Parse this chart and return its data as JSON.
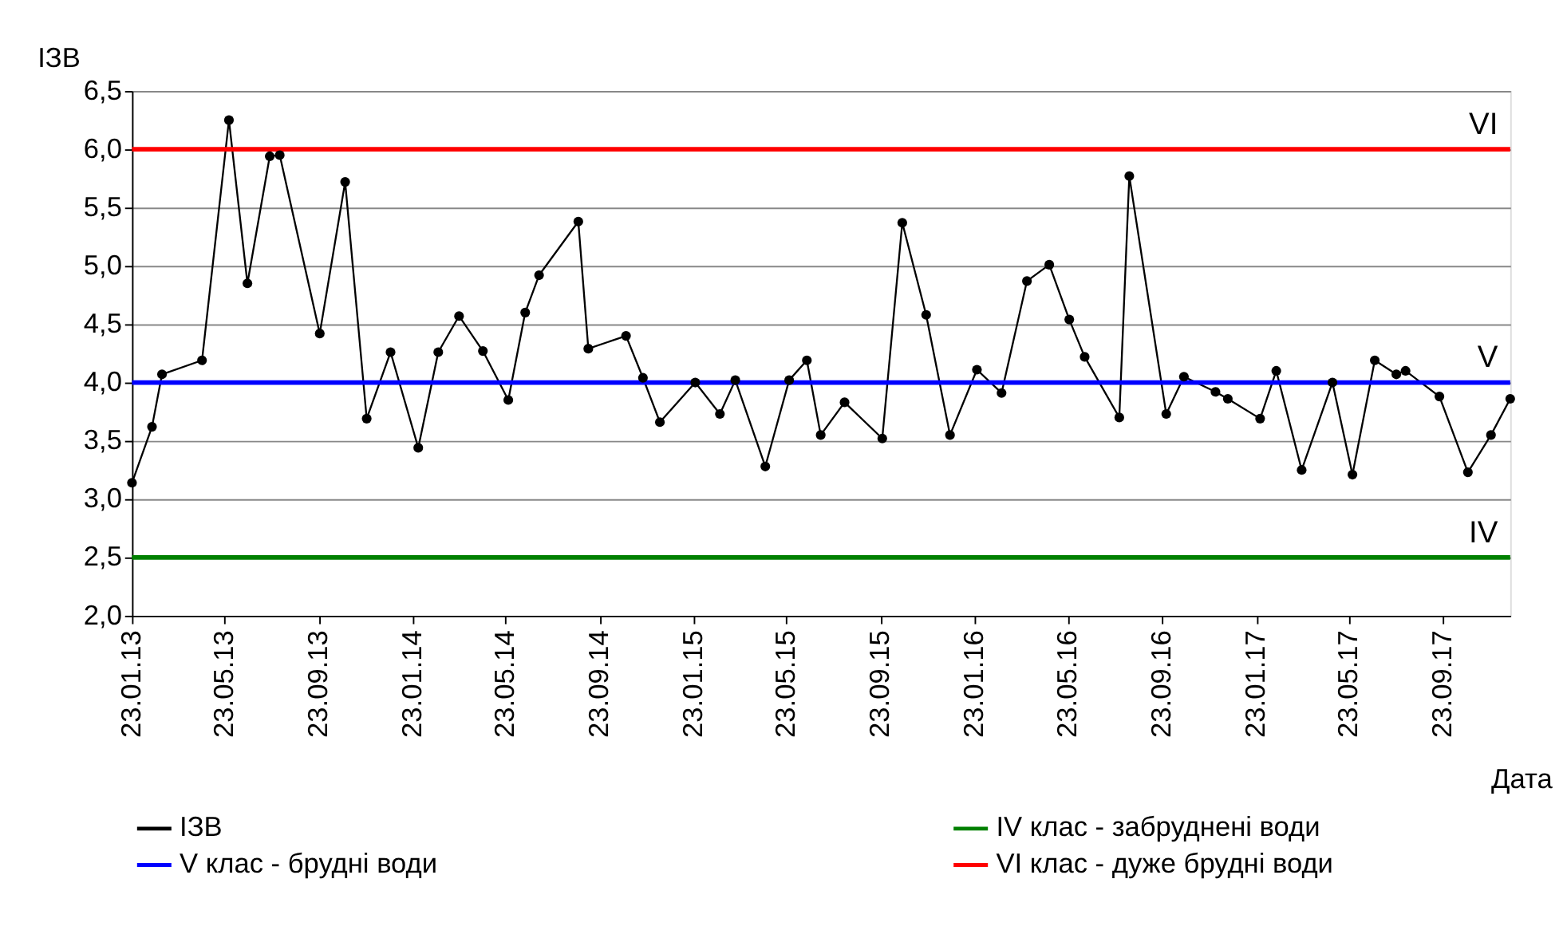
{
  "chart_data": {
    "type": "line",
    "xlabel": "Дата",
    "ylabel": "ІЗВ",
    "xlim": [
      "2013-01-23",
      "2017-12-19"
    ],
    "xticks": [
      {
        "value": "2013-01-23",
        "label": "23.01.13"
      },
      {
        "value": "2013-05-23",
        "label": "23.05.13"
      },
      {
        "value": "2013-09-23",
        "label": "23.09.13"
      },
      {
        "value": "2014-01-23",
        "label": "23.01.14"
      },
      {
        "value": "2014-05-23",
        "label": "23.05.14"
      },
      {
        "value": "2014-09-23",
        "label": "23.09.14"
      },
      {
        "value": "2015-01-23",
        "label": "23.01.15"
      },
      {
        "value": "2015-05-23",
        "label": "23.05.15"
      },
      {
        "value": "2015-09-23",
        "label": "23.09.15"
      },
      {
        "value": "2016-01-23",
        "label": "23.01.16"
      },
      {
        "value": "2016-05-23",
        "label": "23.05.16"
      },
      {
        "value": "2016-09-23",
        "label": "23.09.16"
      },
      {
        "value": "2017-01-23",
        "label": "23.01.17"
      },
      {
        "value": "2017-05-23",
        "label": "23.05.17"
      },
      {
        "value": "2017-09-23",
        "label": "23.09.17"
      }
    ],
    "ylim": [
      2.0,
      6.5
    ],
    "yticks": [
      {
        "value": 2.0,
        "label": "2,0"
      },
      {
        "value": 2.5,
        "label": "2,5"
      },
      {
        "value": 3.0,
        "label": "3,0"
      },
      {
        "value": 3.5,
        "label": "3,5"
      },
      {
        "value": 4.0,
        "label": "4,0"
      },
      {
        "value": 4.5,
        "label": "4,5"
      },
      {
        "value": 5.0,
        "label": "5,0"
      },
      {
        "value": 5.5,
        "label": "5,5"
      },
      {
        "value": 6.0,
        "label": "6,0"
      },
      {
        "value": 6.5,
        "label": "6,5"
      }
    ],
    "grid": "y",
    "legend": "bottom",
    "series": [
      {
        "name": "ІЗВ",
        "color": "#000000",
        "marker": "circle",
        "x": [
          "2013-01-23",
          "2013-02-18",
          "2013-03-03",
          "2013-04-24",
          "2013-05-29",
          "2013-06-22",
          "2013-07-21",
          "2013-08-03",
          "2013-09-24",
          "2013-10-27",
          "2013-11-24",
          "2013-12-25",
          "2014-01-30",
          "2014-02-25",
          "2014-03-24",
          "2014-04-24",
          "2014-05-27",
          "2014-06-18",
          "2014-07-06",
          "2014-08-26",
          "2014-09-08",
          "2014-10-27",
          "2014-11-18",
          "2014-12-10",
          "2015-01-25",
          "2015-02-26",
          "2015-03-18",
          "2015-04-26",
          "2015-05-27",
          "2015-06-19",
          "2015-07-07",
          "2015-08-07",
          "2015-09-25",
          "2015-10-21",
          "2015-11-21",
          "2015-12-22",
          "2016-01-26",
          "2016-02-27",
          "2016-03-31",
          "2016-04-29",
          "2016-05-25",
          "2016-06-14",
          "2016-07-29",
          "2016-08-11",
          "2016-09-28",
          "2016-10-21",
          "2016-12-01",
          "2016-12-17",
          "2017-01-28",
          "2017-02-18",
          "2017-03-23",
          "2017-05-02",
          "2017-05-28",
          "2017-06-26",
          "2017-07-24",
          "2017-08-05",
          "2017-09-18",
          "2017-10-25",
          "2017-11-24",
          "2017-12-19"
        ],
        "values": [
          3.14,
          3.62,
          4.07,
          4.19,
          6.25,
          4.85,
          5.94,
          5.95,
          4.42,
          5.72,
          3.69,
          4.26,
          3.44,
          4.26,
          4.57,
          4.27,
          3.85,
          4.6,
          4.92,
          5.38,
          4.29,
          4.4,
          4.04,
          3.66,
          4.0,
          3.73,
          4.02,
          3.28,
          4.02,
          4.19,
          3.55,
          3.83,
          3.52,
          5.37,
          4.58,
          3.55,
          4.11,
          3.91,
          4.87,
          5.01,
          4.54,
          4.22,
          3.7,
          5.77,
          3.73,
          4.05,
          3.92,
          3.86,
          3.69,
          4.1,
          3.25,
          4.0,
          3.21,
          4.19,
          4.07,
          4.1,
          3.88,
          3.23,
          3.55,
          3.86
        ]
      },
      {
        "name": "IV клас - забруднені води",
        "color": "#008000",
        "marker": "none",
        "x": [
          "2013-01-23",
          "2017-12-19"
        ],
        "values": [
          2.5,
          2.5
        ]
      },
      {
        "name": "V клас - брудні води",
        "color": "#0000ff",
        "marker": "none",
        "x": [
          "2013-01-23",
          "2017-12-19"
        ],
        "values": [
          4.0,
          4.0
        ]
      },
      {
        "name": "VI клас - дуже брудні води",
        "color": "#ff0000",
        "marker": "none",
        "x": [
          "2013-01-23",
          "2017-12-19"
        ],
        "values": [
          6.0,
          6.0
        ]
      }
    ],
    "annotations": [
      {
        "text": "VI",
        "x": "2017-12-19",
        "y": 6.0
      },
      {
        "text": "V",
        "x": "2017-12-19",
        "y": 4.0
      },
      {
        "text": "IV",
        "x": "2017-12-19",
        "y": 2.5
      }
    ]
  }
}
